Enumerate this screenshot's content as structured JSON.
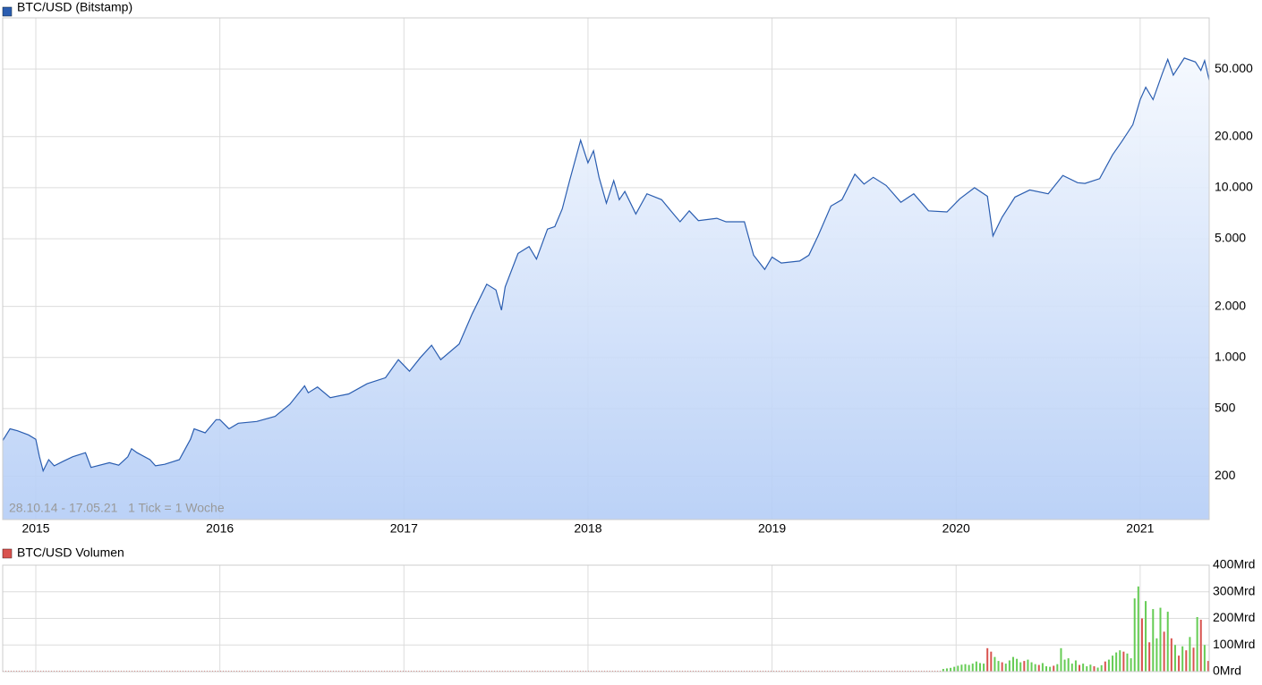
{
  "chart_data": [
    {
      "type": "area",
      "title": "BTC/USD (Bitstamp)",
      "annotation": "28.10.14 - 17.05.21   1 Tick = 1 Woche",
      "color": "#2a5db0",
      "log_scale": true,
      "grid": true,
      "xlim": [
        2014.82,
        2021.375
      ],
      "xticks": [
        2015,
        2016,
        2017,
        2018,
        2019,
        2020,
        2021
      ],
      "ylim": [
        111,
        100000
      ],
      "yticks": [
        {
          "value": 50000,
          "label": "50.000"
        },
        {
          "value": 20000,
          "label": "20.000"
        },
        {
          "value": 10000,
          "label": "10.000"
        },
        {
          "value": 5000,
          "label": "5.000"
        },
        {
          "value": 2000,
          "label": "2.000"
        },
        {
          "value": 1000,
          "label": "1.000"
        },
        500,
        200
      ],
      "x": [
        2014.82,
        2014.86,
        2014.9,
        2014.96,
        2015.0,
        2015.02,
        2015.04,
        2015.07,
        2015.1,
        2015.15,
        2015.2,
        2015.27,
        2015.3,
        2015.4,
        2015.45,
        2015.5,
        2015.52,
        2015.55,
        2015.62,
        2015.65,
        2015.7,
        2015.78,
        2015.84,
        2015.86,
        2015.92,
        2015.98,
        2016.0,
        2016.05,
        2016.1,
        2016.2,
        2016.3,
        2016.38,
        2016.46,
        2016.48,
        2016.53,
        2016.6,
        2016.7,
        2016.8,
        2016.9,
        2016.97,
        2017.03,
        2017.09,
        2017.15,
        2017.2,
        2017.3,
        2017.37,
        2017.45,
        2017.5,
        2017.53,
        2017.55,
        2017.62,
        2017.68,
        2017.72,
        2017.78,
        2017.82,
        2017.86,
        2017.9,
        2017.96,
        2018.0,
        2018.03,
        2018.06,
        2018.1,
        2018.14,
        2018.17,
        2018.2,
        2018.26,
        2018.32,
        2018.4,
        2018.45,
        2018.5,
        2018.55,
        2018.6,
        2018.7,
        2018.75,
        2018.85,
        2018.9,
        2018.96,
        2019.0,
        2019.05,
        2019.15,
        2019.2,
        2019.25,
        2019.32,
        2019.38,
        2019.45,
        2019.5,
        2019.55,
        2019.62,
        2019.7,
        2019.77,
        2019.85,
        2019.95,
        2020.02,
        2020.1,
        2020.17,
        2020.2,
        2020.25,
        2020.32,
        2020.4,
        2020.5,
        2020.58,
        2020.66,
        2020.7,
        2020.78,
        2020.85,
        2020.9,
        2020.96,
        2021.0,
        2021.03,
        2021.07,
        2021.12,
        2021.15,
        2021.18,
        2021.24,
        2021.3,
        2021.33,
        2021.35,
        2021.375
      ],
      "values": [
        324,
        380,
        370,
        350,
        330,
        260,
        215,
        250,
        230,
        245,
        260,
        275,
        225,
        240,
        232,
        260,
        290,
        275,
        250,
        230,
        235,
        250,
        330,
        380,
        360,
        430,
        430,
        380,
        410,
        420,
        450,
        530,
        680,
        620,
        670,
        580,
        610,
        700,
        760,
        970,
        830,
        1000,
        1180,
        970,
        1200,
        1800,
        2700,
        2500,
        1900,
        2600,
        4100,
        4500,
        3800,
        5700,
        5900,
        7500,
        11000,
        19000,
        14000,
        16500,
        11500,
        8100,
        11000,
        8500,
        9500,
        7000,
        9200,
        8500,
        7300,
        6300,
        7300,
        6400,
        6600,
        6300,
        6300,
        4000,
        3300,
        3900,
        3600,
        3700,
        4000,
        5200,
        7800,
        8500,
        12000,
        10500,
        11500,
        10300,
        8200,
        9200,
        7300,
        7200,
        8600,
        10000,
        8900,
        5200,
        6700,
        8800,
        9700,
        9200,
        11800,
        10700,
        10600,
        11300,
        15600,
        18700,
        23500,
        33000,
        39000,
        33000,
        47000,
        57000,
        46000,
        58000,
        55000,
        49000,
        56000,
        43000
      ]
    },
    {
      "type": "bar",
      "title": "BTC/USD Volumen",
      "grid": true,
      "xlim": [
        2014.82,
        2021.375
      ],
      "ylim": [
        0,
        400
      ],
      "yticks": [
        {
          "value": 400,
          "label": "400Mrd"
        },
        {
          "value": 300,
          "label": "300Mrd"
        },
        {
          "value": 200,
          "label": "200Mrd"
        },
        {
          "value": 100,
          "label": "100Mrd"
        },
        {
          "value": 0,
          "label": "0Mrd"
        }
      ],
      "x": [
        2019.93,
        2019.95,
        2019.97,
        2019.99,
        2020.01,
        2020.03,
        2020.05,
        2020.07,
        2020.09,
        2020.11,
        2020.13,
        2020.15,
        2020.17,
        2020.19,
        2020.21,
        2020.23,
        2020.25,
        2020.27,
        2020.29,
        2020.31,
        2020.33,
        2020.35,
        2020.37,
        2020.39,
        2020.41,
        2020.43,
        2020.45,
        2020.47,
        2020.49,
        2020.51,
        2020.53,
        2020.55,
        2020.57,
        2020.59,
        2020.61,
        2020.63,
        2020.65,
        2020.67,
        2020.69,
        2020.71,
        2020.73,
        2020.75,
        2020.77,
        2020.79,
        2020.81,
        2020.83,
        2020.85,
        2020.87,
        2020.89,
        2020.91,
        2020.93,
        2020.95,
        2020.97,
        2020.99,
        2021.01,
        2021.03,
        2021.05,
        2021.07,
        2021.09,
        2021.11,
        2021.13,
        2021.15,
        2021.17,
        2021.19,
        2021.21,
        2021.23,
        2021.25,
        2021.27,
        2021.29,
        2021.31,
        2021.33,
        2021.35,
        2021.37
      ],
      "values": [
        10,
        12,
        14,
        18,
        22,
        26,
        28,
        25,
        30,
        38,
        32,
        30,
        88,
        75,
        55,
        40,
        35,
        30,
        42,
        55,
        48,
        35,
        40,
        45,
        35,
        28,
        25,
        32,
        20,
        18,
        22,
        28,
        88,
        45,
        50,
        30,
        42,
        25,
        30,
        20,
        26,
        20,
        15,
        24,
        38,
        45,
        60,
        72,
        80,
        75,
        68,
        50,
        275,
        320,
        200,
        265,
        110,
        235,
        125,
        240,
        150,
        225,
        125,
        100,
        60,
        95,
        80,
        130,
        90,
        205,
        195,
        100,
        40
      ],
      "colors": [
        "#66cc55",
        "#66cc55",
        "#66cc55",
        "#66cc55",
        "#66cc55",
        "#66cc55",
        "#66cc55",
        "#66cc55",
        "#66cc55",
        "#66cc55",
        "#66cc55",
        "#66cc55",
        "#d9534f",
        "#d9534f",
        "#66cc55",
        "#66cc55",
        "#d9534f",
        "#66cc55",
        "#66cc55",
        "#66cc55",
        "#66cc55",
        "#66cc55",
        "#d9534f",
        "#66cc55",
        "#66cc55",
        "#66cc55",
        "#d9534f",
        "#66cc55",
        "#66cc55",
        "#66cc55",
        "#d9534f",
        "#66cc55",
        "#66cc55",
        "#66cc55",
        "#66cc55",
        "#66cc55",
        "#66cc55",
        "#d9534f",
        "#66cc55",
        "#66cc55",
        "#66cc55",
        "#d9534f",
        "#66cc55",
        "#66cc55",
        "#d9534f",
        "#66cc55",
        "#66cc55",
        "#66cc55",
        "#66cc55",
        "#d9534f",
        "#66cc55",
        "#66cc55",
        "#66cc55",
        "#66cc55",
        "#d9534f",
        "#66cc55",
        "#d9534f",
        "#66cc55",
        "#66cc55",
        "#66cc55",
        "#d9534f",
        "#66cc55",
        "#d9534f",
        "#66cc55",
        "#d9534f",
        "#66cc55",
        "#d9534f",
        "#66cc55",
        "#d9534f",
        "#66cc55",
        "#d9534f",
        "#66cc55",
        "#d9534f"
      ]
    }
  ]
}
